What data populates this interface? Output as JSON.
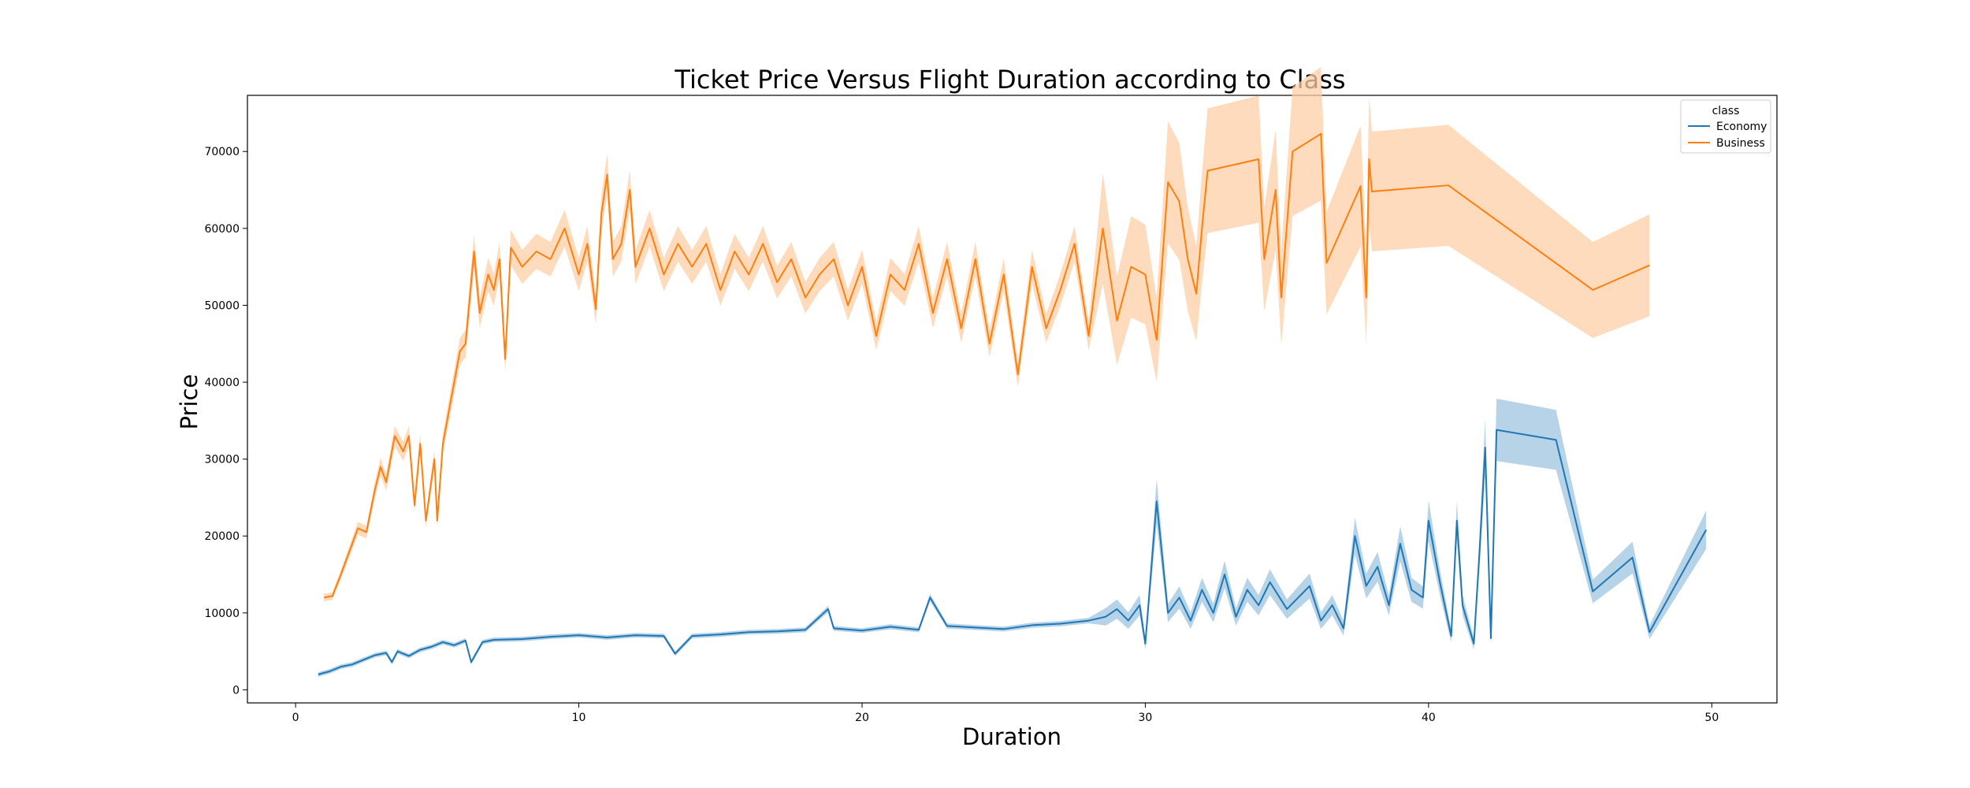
{
  "chart_data": {
    "type": "line",
    "title": "Ticket Price Versus Flight Duration according to Class",
    "xlabel": "Duration",
    "ylabel": "Price",
    "xlim": [
      -1.7,
      52.3
    ],
    "ylim": [
      -1700,
      77300
    ],
    "xticks": [
      0,
      10,
      20,
      30,
      40,
      50
    ],
    "yticks": [
      0,
      10000,
      20000,
      30000,
      40000,
      50000,
      60000,
      70000
    ],
    "grid": false,
    "legend": {
      "title": "class",
      "placement": "top-right"
    },
    "series": [
      {
        "name": "Economy",
        "color": "#1f77b4",
        "band_color": "#9ec4e0",
        "points": [
          [
            0.8,
            2000
          ],
          [
            1.2,
            2400
          ],
          [
            1.6,
            3000
          ],
          [
            2.0,
            3300
          ],
          [
            2.4,
            3900
          ],
          [
            2.8,
            4500
          ],
          [
            3.2,
            4800
          ],
          [
            3.4,
            3600
          ],
          [
            3.6,
            5000
          ],
          [
            4.0,
            4400
          ],
          [
            4.4,
            5200
          ],
          [
            4.8,
            5600
          ],
          [
            5.2,
            6200
          ],
          [
            5.6,
            5800
          ],
          [
            6.0,
            6400
          ],
          [
            6.2,
            3600
          ],
          [
            6.6,
            6200
          ],
          [
            7.0,
            6500
          ],
          [
            8.0,
            6600
          ],
          [
            9.0,
            6900
          ],
          [
            10.0,
            7100
          ],
          [
            11.0,
            6800
          ],
          [
            12.0,
            7100
          ],
          [
            13.0,
            7000
          ],
          [
            13.4,
            4700
          ],
          [
            14.0,
            7000
          ],
          [
            15.0,
            7200
          ],
          [
            16.0,
            7500
          ],
          [
            17.0,
            7600
          ],
          [
            18.0,
            7800
          ],
          [
            18.8,
            10500
          ],
          [
            19.0,
            8000
          ],
          [
            20.0,
            7700
          ],
          [
            21.0,
            8200
          ],
          [
            22.0,
            7800
          ],
          [
            22.4,
            12000
          ],
          [
            23.0,
            8300
          ],
          [
            24.0,
            8100
          ],
          [
            25.0,
            7900
          ],
          [
            26.0,
            8400
          ],
          [
            27.0,
            8600
          ],
          [
            28.0,
            9000
          ],
          [
            28.6,
            9500
          ],
          [
            29.0,
            10500
          ],
          [
            29.4,
            9000
          ],
          [
            29.8,
            11000
          ],
          [
            30.0,
            6000
          ],
          [
            30.4,
            24500
          ],
          [
            30.8,
            10000
          ],
          [
            31.2,
            12000
          ],
          [
            31.6,
            9000
          ],
          [
            32.0,
            13000
          ],
          [
            32.4,
            10000
          ],
          [
            32.8,
            15000
          ],
          [
            33.2,
            9500
          ],
          [
            33.6,
            13000
          ],
          [
            34.0,
            11000
          ],
          [
            34.4,
            14000
          ],
          [
            35.0,
            10500
          ],
          [
            35.4,
            12000
          ],
          [
            35.8,
            13500
          ],
          [
            36.2,
            9000
          ],
          [
            36.6,
            11000
          ],
          [
            37.0,
            8000
          ],
          [
            37.4,
            20000
          ],
          [
            37.8,
            13500
          ],
          [
            38.2,
            16000
          ],
          [
            38.6,
            11000
          ],
          [
            39.0,
            19000
          ],
          [
            39.4,
            13000
          ],
          [
            39.8,
            12000
          ],
          [
            40.0,
            22000
          ],
          [
            40.4,
            14000
          ],
          [
            40.8,
            7000
          ],
          [
            41.0,
            22000
          ],
          [
            41.2,
            11000
          ],
          [
            41.6,
            6000
          ],
          [
            41.8,
            18000
          ],
          [
            42.0,
            31500
          ],
          [
            42.2,
            6700
          ],
          [
            42.4,
            33800
          ],
          [
            44.5,
            32500
          ],
          [
            45.8,
            12800
          ],
          [
            47.2,
            17200
          ],
          [
            47.8,
            7500
          ],
          [
            49.8,
            20800
          ]
        ]
      },
      {
        "name": "Business",
        "color": "#ff7f0e",
        "band_color": "#fdcfa6",
        "points": [
          [
            1.0,
            12000
          ],
          [
            1.3,
            12200
          ],
          [
            1.6,
            15000
          ],
          [
            1.9,
            18000
          ],
          [
            2.2,
            21000
          ],
          [
            2.5,
            20500
          ],
          [
            2.8,
            26000
          ],
          [
            3.0,
            29000
          ],
          [
            3.2,
            27000
          ],
          [
            3.5,
            33000
          ],
          [
            3.8,
            31000
          ],
          [
            4.0,
            33000
          ],
          [
            4.2,
            24000
          ],
          [
            4.4,
            32000
          ],
          [
            4.6,
            22000
          ],
          [
            4.9,
            30000
          ],
          [
            5.0,
            22000
          ],
          [
            5.2,
            32000
          ],
          [
            5.5,
            38000
          ],
          [
            5.8,
            44000
          ],
          [
            6.0,
            45000
          ],
          [
            6.3,
            57000
          ],
          [
            6.5,
            49000
          ],
          [
            6.8,
            54000
          ],
          [
            7.0,
            52000
          ],
          [
            7.2,
            56000
          ],
          [
            7.4,
            43000
          ],
          [
            7.6,
            57500
          ],
          [
            8.0,
            55000
          ],
          [
            8.5,
            57000
          ],
          [
            9.0,
            56000
          ],
          [
            9.5,
            60000
          ],
          [
            10.0,
            54000
          ],
          [
            10.3,
            58000
          ],
          [
            10.6,
            49500
          ],
          [
            10.8,
            62000
          ],
          [
            11.0,
            67000
          ],
          [
            11.2,
            56000
          ],
          [
            11.5,
            58000
          ],
          [
            11.8,
            65000
          ],
          [
            12.0,
            55000
          ],
          [
            12.5,
            60000
          ],
          [
            13.0,
            54000
          ],
          [
            13.5,
            58000
          ],
          [
            14.0,
            55000
          ],
          [
            14.5,
            58000
          ],
          [
            15.0,
            52000
          ],
          [
            15.5,
            57000
          ],
          [
            16.0,
            54000
          ],
          [
            16.5,
            58000
          ],
          [
            17.0,
            53000
          ],
          [
            17.5,
            56000
          ],
          [
            18.0,
            51000
          ],
          [
            18.5,
            54000
          ],
          [
            19.0,
            56000
          ],
          [
            19.5,
            50000
          ],
          [
            20.0,
            55000
          ],
          [
            20.5,
            46000
          ],
          [
            21.0,
            54000
          ],
          [
            21.5,
            52000
          ],
          [
            22.0,
            58000
          ],
          [
            22.5,
            49000
          ],
          [
            23.0,
            56000
          ],
          [
            23.5,
            47000
          ],
          [
            24.0,
            56000
          ],
          [
            24.5,
            45000
          ],
          [
            25.0,
            54000
          ],
          [
            25.5,
            41000
          ],
          [
            26.0,
            55000
          ],
          [
            26.5,
            47000
          ],
          [
            27.0,
            52000
          ],
          [
            27.5,
            58000
          ],
          [
            28.0,
            46000
          ],
          [
            28.5,
            60000
          ],
          [
            29.0,
            48000
          ],
          [
            29.5,
            55000
          ],
          [
            30.0,
            54000
          ],
          [
            30.4,
            45500
          ],
          [
            30.8,
            66000
          ],
          [
            31.2,
            63500
          ],
          [
            31.5,
            56000
          ],
          [
            31.8,
            51500
          ],
          [
            32.0,
            60000
          ],
          [
            32.2,
            67500
          ],
          [
            34.0,
            69000
          ],
          [
            34.2,
            56000
          ],
          [
            34.6,
            65000
          ],
          [
            34.8,
            51000
          ],
          [
            35.2,
            70000
          ],
          [
            36.2,
            72300
          ],
          [
            36.4,
            55500
          ],
          [
            37.6,
            65500
          ],
          [
            37.8,
            51000
          ],
          [
            37.9,
            69000
          ],
          [
            38.0,
            64800
          ],
          [
            40.7,
            65600
          ],
          [
            45.8,
            52000
          ],
          [
            47.8,
            55200
          ]
        ]
      }
    ]
  }
}
